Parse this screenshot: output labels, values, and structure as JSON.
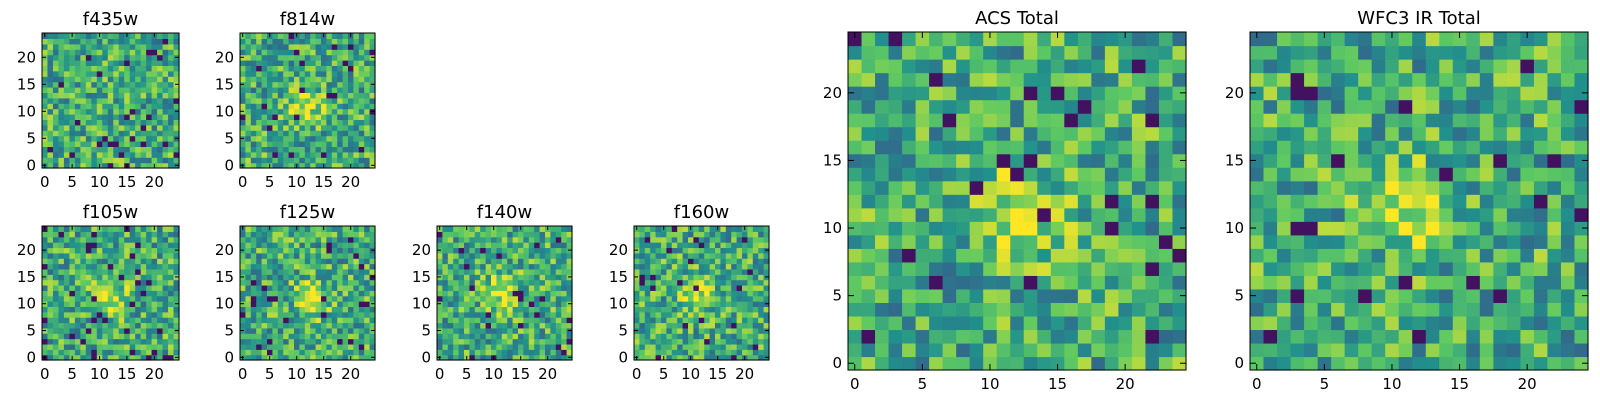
{
  "chart_data": [
    {
      "type": "heatmap",
      "title": "f435w",
      "xlim": [
        -0.5,
        24.5
      ],
      "ylim": [
        -0.5,
        24.5
      ],
      "x_ticks": [
        0,
        5,
        10,
        15,
        20
      ],
      "y_ticks": [
        0,
        5,
        10,
        15,
        20
      ],
      "colormap": "viridis",
      "grid": false,
      "source_size": 25,
      "peak": null
    },
    {
      "type": "heatmap",
      "title": "f814w",
      "xlim": [
        -0.5,
        24.5
      ],
      "ylim": [
        -0.5,
        24.5
      ],
      "x_ticks": [
        0,
        5,
        10,
        15,
        20
      ],
      "y_ticks": [
        0,
        5,
        10,
        15,
        20
      ],
      "colormap": "viridis",
      "grid": false,
      "source_size": 25,
      "peak": [
        11.5,
        11
      ]
    },
    {
      "type": "heatmap",
      "title": "f105w",
      "xlim": [
        -0.5,
        24.5
      ],
      "ylim": [
        -0.5,
        24.5
      ],
      "x_ticks": [
        0,
        5,
        10,
        15,
        20
      ],
      "y_ticks": [
        0,
        5,
        10,
        15,
        20
      ],
      "colormap": "viridis",
      "grid": false,
      "source_size": 25,
      "peak": [
        12,
        11
      ]
    },
    {
      "type": "heatmap",
      "title": "f125w",
      "xlim": [
        -0.5,
        24.5
      ],
      "ylim": [
        -0.5,
        24.5
      ],
      "x_ticks": [
        0,
        5,
        10,
        15,
        20
      ],
      "y_ticks": [
        0,
        5,
        10,
        15,
        20
      ],
      "colormap": "viridis",
      "grid": false,
      "source_size": 25,
      "peak": [
        13,
        11
      ]
    },
    {
      "type": "heatmap",
      "title": "f140w",
      "xlim": [
        -0.5,
        24.5
      ],
      "ylim": [
        -0.5,
        24.5
      ],
      "x_ticks": [
        0,
        5,
        10,
        15,
        20
      ],
      "y_ticks": [
        0,
        5,
        10,
        15,
        20
      ],
      "colormap": "viridis",
      "grid": false,
      "source_size": 25,
      "peak": [
        11.5,
        12.5
      ]
    },
    {
      "type": "heatmap",
      "title": "f160w",
      "xlim": [
        -0.5,
        24.5
      ],
      "ylim": [
        -0.5,
        24.5
      ],
      "x_ticks": [
        0,
        5,
        10,
        15,
        20
      ],
      "y_ticks": [
        0,
        5,
        10,
        15,
        20
      ],
      "colormap": "viridis",
      "grid": false,
      "source_size": 25,
      "peak": [
        11,
        12
      ]
    },
    {
      "type": "heatmap",
      "title": "ACS Total",
      "xlim": [
        -0.5,
        24.5
      ],
      "ylim": [
        -0.5,
        24.5
      ],
      "x_ticks": [
        0,
        5,
        10,
        15,
        20
      ],
      "y_ticks": [
        0,
        5,
        10,
        15,
        20
      ],
      "colormap": "viridis",
      "grid": false,
      "source_size": 25,
      "peak": [
        12,
        11
      ]
    },
    {
      "type": "heatmap",
      "title": "WFC3 IR Total",
      "xlim": [
        -0.5,
        24.5
      ],
      "ylim": [
        -0.5,
        24.5
      ],
      "x_ticks": [
        0,
        5,
        10,
        15,
        20
      ],
      "y_ticks": [
        0,
        5,
        10,
        15,
        20
      ],
      "colormap": "viridis",
      "grid": false,
      "source_size": 25,
      "peak": [
        11.5,
        11.5
      ]
    }
  ]
}
